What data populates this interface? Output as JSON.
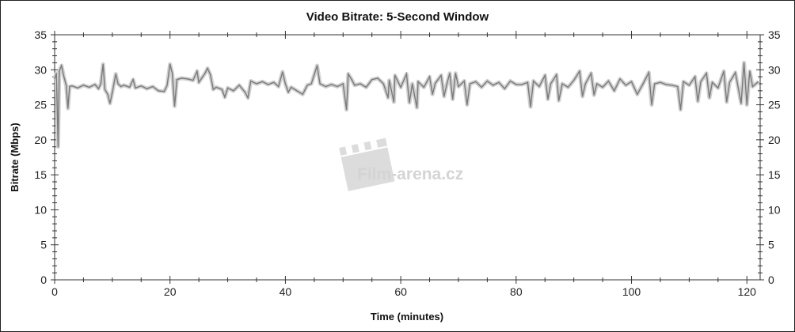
{
  "chart_data": {
    "type": "line",
    "title": "Video Bitrate: 5-Second Window",
    "xlabel": "Time (minutes)",
    "ylabel": "Bitrate (Mbps)",
    "xlim": [
      0,
      122.3
    ],
    "ylim": [
      0,
      35
    ],
    "x_ticks": [
      0,
      20,
      40,
      60,
      80,
      100,
      120
    ],
    "y_ticks": [
      0,
      5,
      10,
      15,
      20,
      25,
      30,
      35
    ],
    "grid": false,
    "legend": "none",
    "line_color": "#7a7a7a",
    "envelope_color": "#d0d0d0",
    "watermark": "Film-arena.cz",
    "series": [
      {
        "points": [
          [
            0,
            28.7
          ],
          [
            0.3,
            29.5
          ],
          [
            0.6,
            19.0
          ],
          [
            0.8,
            29.8
          ],
          [
            1.2,
            30.6
          ],
          [
            1.6,
            29.0
          ],
          [
            2.0,
            27.8
          ],
          [
            2.3,
            24.5
          ],
          [
            2.6,
            27.6
          ],
          [
            3,
            27.7
          ],
          [
            4,
            27.4
          ],
          [
            5,
            27.8
          ],
          [
            6,
            27.5
          ],
          [
            7,
            27.9
          ],
          [
            7.6,
            27.3
          ],
          [
            8,
            28.0
          ],
          [
            8.4,
            30.8
          ],
          [
            8.7,
            27.2
          ],
          [
            9.2,
            26.5
          ],
          [
            9.6,
            25.2
          ],
          [
            10,
            26.8
          ],
          [
            10.6,
            29.4
          ],
          [
            11,
            28.0
          ],
          [
            11.5,
            27.6
          ],
          [
            12,
            27.8
          ],
          [
            13,
            27.5
          ],
          [
            13.6,
            28.6
          ],
          [
            14,
            27.4
          ],
          [
            15,
            27.7
          ],
          [
            16,
            27.3
          ],
          [
            17,
            27.6
          ],
          [
            18,
            27.0
          ],
          [
            19,
            26.9
          ],
          [
            19.5,
            27.8
          ],
          [
            20,
            30.8
          ],
          [
            20.4,
            29.5
          ],
          [
            20.8,
            24.8
          ],
          [
            21.2,
            28.6
          ],
          [
            22,
            28.8
          ],
          [
            23,
            28.7
          ],
          [
            24,
            28.5
          ],
          [
            24.7,
            29.8
          ],
          [
            25,
            28.2
          ],
          [
            26,
            29.4
          ],
          [
            26.5,
            30.2
          ],
          [
            27,
            29.3
          ],
          [
            27.5,
            27.2
          ],
          [
            28,
            27.5
          ],
          [
            29,
            27.2
          ],
          [
            29.5,
            26.1
          ],
          [
            30,
            27.4
          ],
          [
            31,
            27.0
          ],
          [
            32,
            27.8
          ],
          [
            33,
            26.8
          ],
          [
            33.5,
            26.0
          ],
          [
            34,
            28.4
          ],
          [
            35,
            28.0
          ],
          [
            36,
            28.3
          ],
          [
            37,
            27.9
          ],
          [
            38,
            28.2
          ],
          [
            38.8,
            27.6
          ],
          [
            39.5,
            29.7
          ],
          [
            40,
            28.0
          ],
          [
            40.5,
            26.8
          ],
          [
            41,
            27.5
          ],
          [
            42,
            27.0
          ],
          [
            43,
            26.5
          ],
          [
            43.8,
            27.8
          ],
          [
            44.5,
            28.0
          ],
          [
            45.5,
            30.6
          ],
          [
            46,
            28.0
          ],
          [
            47,
            27.6
          ],
          [
            48,
            27.9
          ],
          [
            49,
            27.6
          ],
          [
            50,
            28.0
          ],
          [
            50.6,
            24.3
          ],
          [
            50.9,
            29.4
          ],
          [
            51.5,
            28.6
          ],
          [
            52,
            27.8
          ],
          [
            53,
            28.0
          ],
          [
            54,
            27.5
          ],
          [
            55,
            28.6
          ],
          [
            56,
            28.8
          ],
          [
            57,
            28.0
          ],
          [
            57.8,
            26.0
          ],
          [
            58,
            28.5
          ],
          [
            58.8,
            25.4
          ],
          [
            59,
            29.2
          ],
          [
            60,
            27.5
          ],
          [
            61,
            29.4
          ],
          [
            61.5,
            25.3
          ],
          [
            62,
            28.0
          ],
          [
            62.8,
            24.6
          ],
          [
            63,
            28.3
          ],
          [
            64,
            27.5
          ],
          [
            65,
            29.0
          ],
          [
            65.5,
            26.5
          ],
          [
            66,
            28.1
          ],
          [
            67,
            29.2
          ],
          [
            67.5,
            26.2
          ],
          [
            68,
            28.0
          ],
          [
            68.5,
            29.5
          ],
          [
            69,
            25.8
          ],
          [
            69.5,
            29.5
          ],
          [
            70,
            27.6
          ],
          [
            71,
            28.4
          ],
          [
            71.5,
            25.0
          ],
          [
            72,
            28.0
          ],
          [
            73,
            28.3
          ],
          [
            74,
            27.5
          ],
          [
            75,
            28.4
          ],
          [
            76,
            27.8
          ],
          [
            77,
            28.2
          ],
          [
            78,
            27.3
          ],
          [
            79,
            28.4
          ],
          [
            80,
            27.9
          ],
          [
            81,
            27.9
          ],
          [
            82,
            28.2
          ],
          [
            82.5,
            24.7
          ],
          [
            83,
            28.4
          ],
          [
            84,
            27.6
          ],
          [
            85,
            29.2
          ],
          [
            85.5,
            25.8
          ],
          [
            86,
            28.0
          ],
          [
            87,
            29.3
          ],
          [
            87.4,
            25.6
          ],
          [
            88,
            28.0
          ],
          [
            89,
            27.5
          ],
          [
            90,
            28.5
          ],
          [
            91,
            29.8
          ],
          [
            91.5,
            26.2
          ],
          [
            92,
            28.0
          ],
          [
            93,
            29.5
          ],
          [
            93.5,
            26.4
          ],
          [
            94,
            28.0
          ],
          [
            95,
            27.5
          ],
          [
            96,
            28.4
          ],
          [
            97,
            27.0
          ],
          [
            98,
            28.7
          ],
          [
            99,
            27.8
          ],
          [
            100,
            28.3
          ],
          [
            101,
            26.5
          ],
          [
            102,
            28.0
          ],
          [
            103,
            29.6
          ],
          [
            103.5,
            25.0
          ],
          [
            104,
            28.0
          ],
          [
            105,
            28.2
          ],
          [
            106,
            27.9
          ],
          [
            107,
            27.8
          ],
          [
            108,
            27.6
          ],
          [
            108.5,
            24.3
          ],
          [
            109,
            28.3
          ],
          [
            110,
            27.8
          ],
          [
            111,
            29.0
          ],
          [
            111.5,
            25.5
          ],
          [
            112,
            28.3
          ],
          [
            113,
            29.5
          ],
          [
            113.5,
            26.0
          ],
          [
            114,
            28.2
          ],
          [
            115,
            27.4
          ],
          [
            116,
            29.8
          ],
          [
            116.5,
            25.4
          ],
          [
            117,
            28.2
          ],
          [
            118,
            29.6
          ],
          [
            119,
            25.2
          ],
          [
            119.5,
            31.0
          ],
          [
            120,
            25.0
          ],
          [
            120.5,
            29.8
          ],
          [
            121,
            27.6
          ],
          [
            122,
            28.3
          ]
        ]
      }
    ]
  }
}
